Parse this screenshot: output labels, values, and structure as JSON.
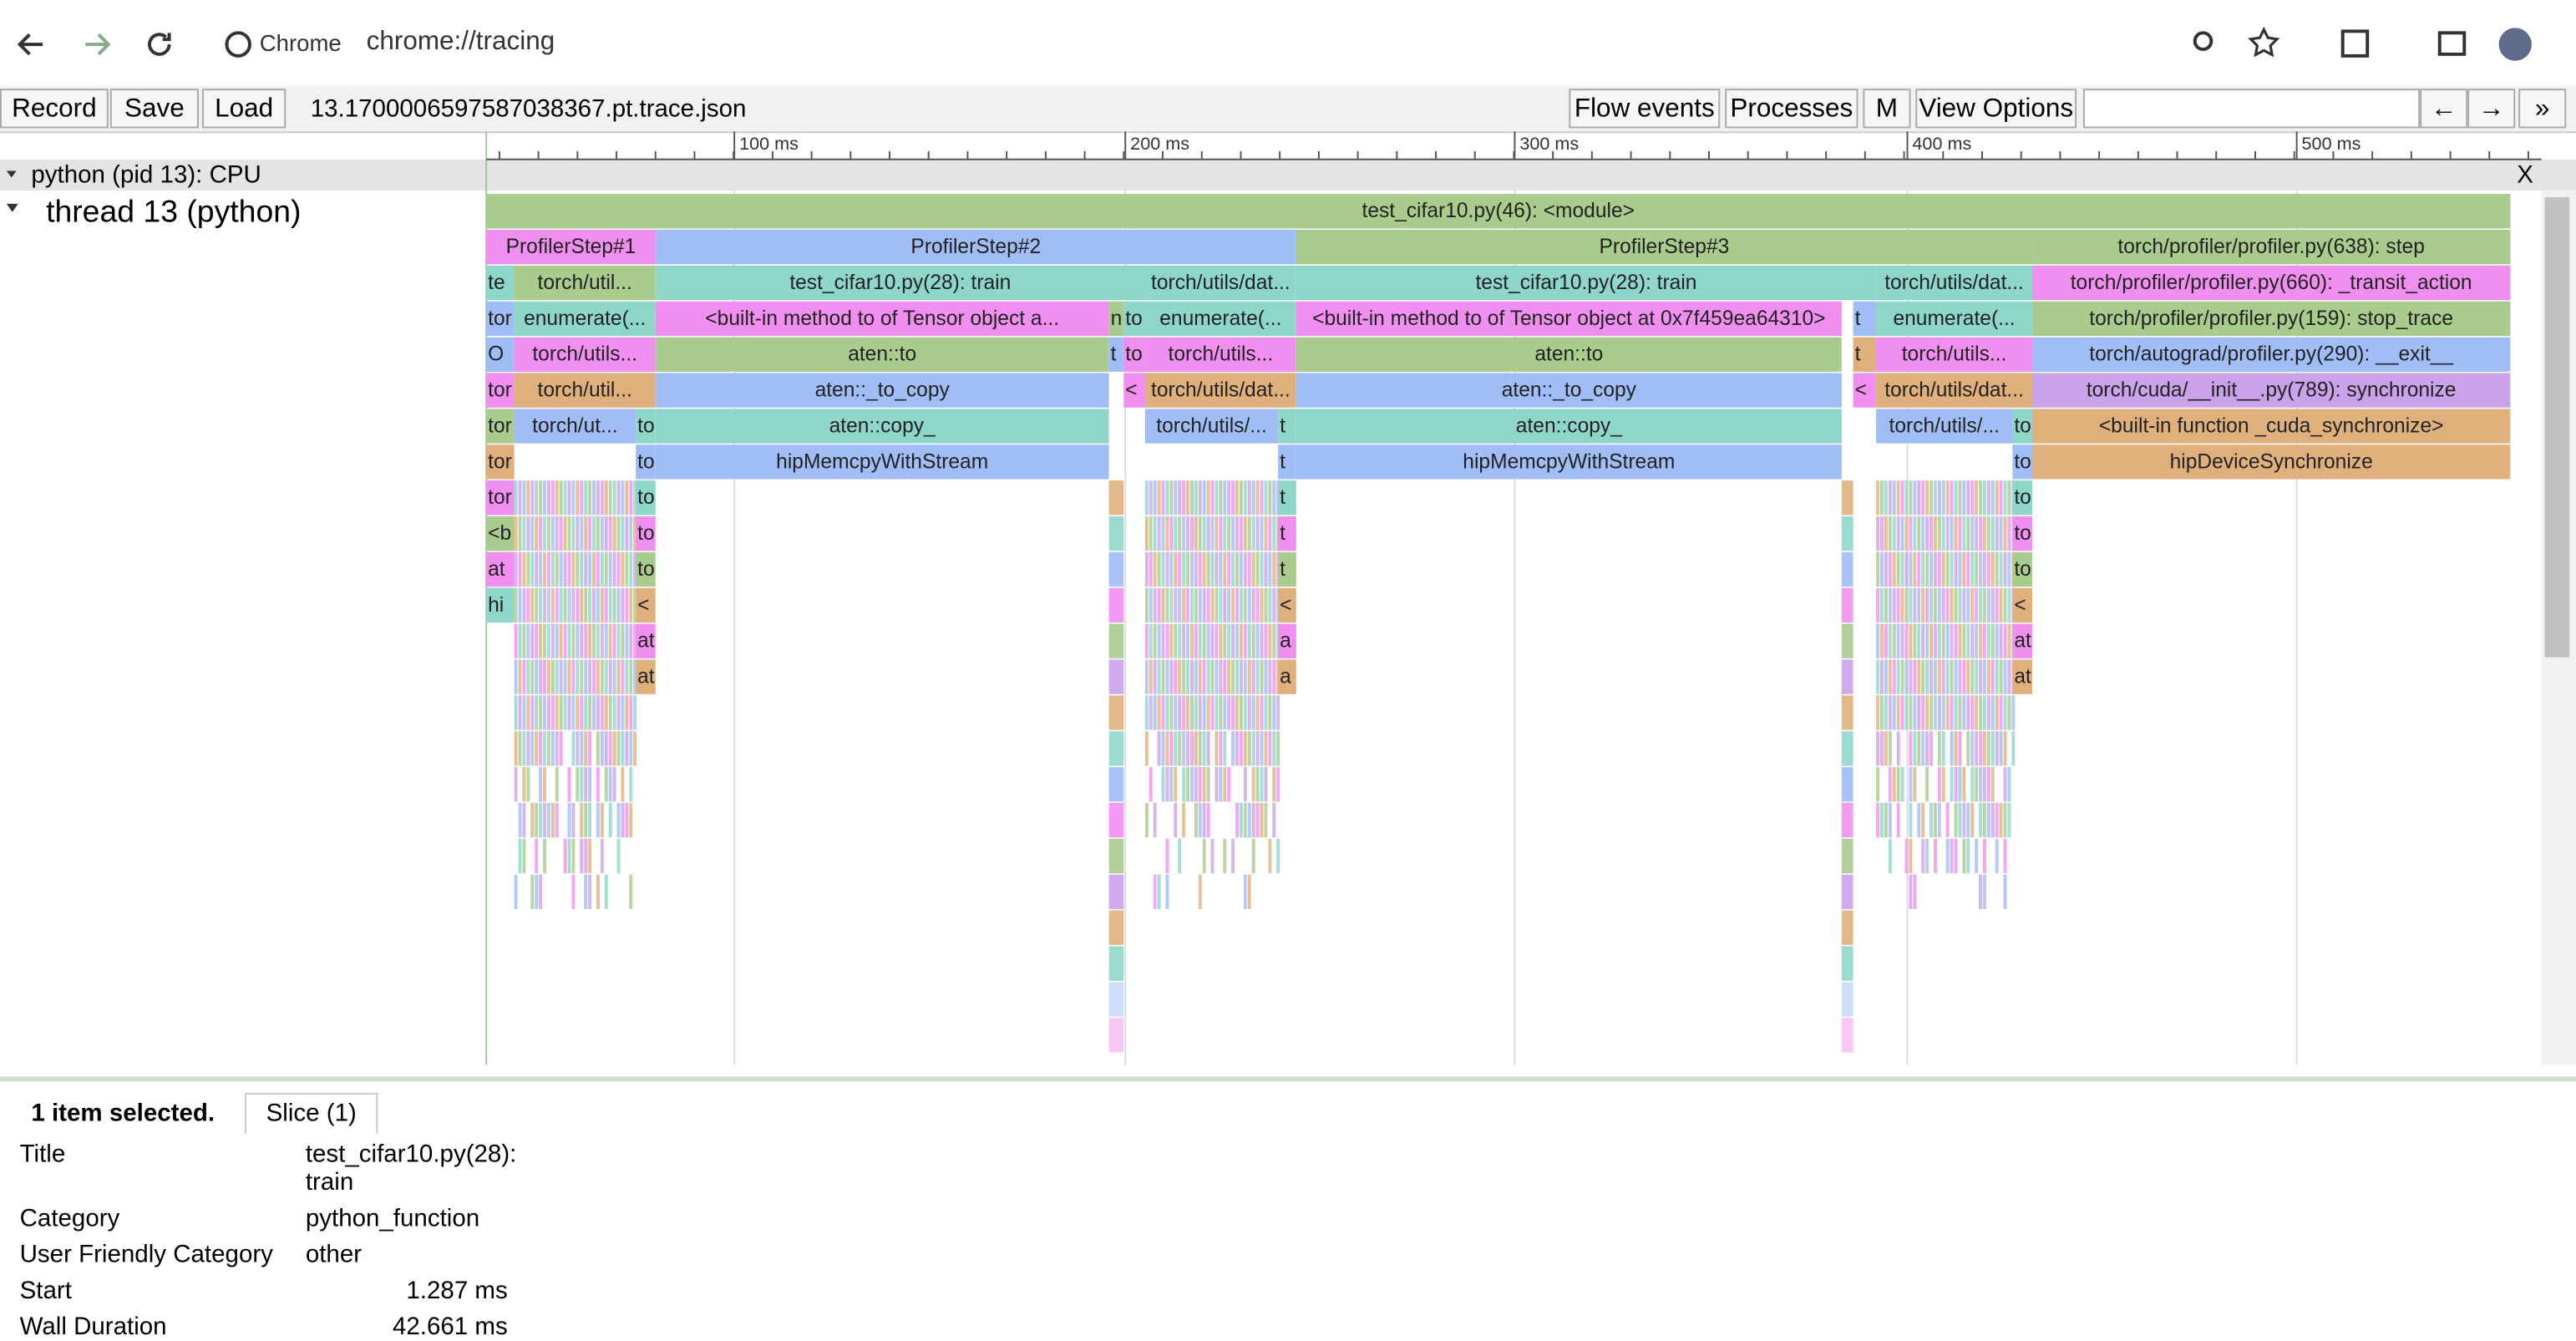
{
  "browser": {
    "brand": "Chrome",
    "url": "chrome://tracing"
  },
  "toolbar": {
    "buttons": [
      "Record",
      "Save",
      "Load"
    ],
    "file": "13.1700006597587038367.pt.trace.json",
    "right_buttons": [
      "Flow events",
      "Processes",
      "M",
      "View Options"
    ],
    "nav": [
      "←",
      "→",
      "»"
    ]
  },
  "ruler": {
    "labels": [
      "100 ms",
      "200 ms",
      "300 ms",
      "400 ms",
      "500 ms"
    ]
  },
  "process": {
    "title": "python (pid 13): CPU",
    "close": "X",
    "thread": "thread 13 (python)"
  },
  "flame": {
    "slices": [
      "test_cifar10.py(46): <module>",
      "ProfilerStep#1",
      "ProfilerStep#2",
      "ProfilerStep#3",
      "torch/profiler/profiler.py(638): step",
      "te",
      "torch/util...",
      "test_cifar10.py(28): train",
      "torch/utils/dat...",
      "test_cifar10.py(28): train",
      "torch/utils/dat...",
      "torch/profiler/profiler.py(660): _transit_action",
      "tor",
      "enumerate(...",
      "<built-in method to of Tensor object a...",
      "n",
      "to",
      "enumerate(...",
      "<built-in method to of Tensor object at 0x7f459ea64310>",
      "t",
      "enumerate(...",
      "torch/profiler/profiler.py(159): stop_trace",
      "O",
      "torch/utils...",
      "aten::to",
      "t",
      "to",
      "torch/utils...",
      "aten::to",
      "t",
      "torch/utils...",
      "torch/autograd/profiler.py(290): __exit__",
      "tor",
      "torch/util...",
      "aten::_to_copy",
      "<",
      "torch/utils/dat...",
      "aten::_to_copy",
      "<",
      "torch/utils/dat...",
      "torch/cuda/__init__.py(789): synchronize",
      "tor",
      "torch/ut...",
      "to",
      "aten::copy_",
      "torch/utils/...",
      "t",
      "aten::copy_",
      "torch/utils/...",
      "to",
      "<built-in function _cuda_synchronize>",
      "tor",
      "to",
      "hipMemcpyWithStream",
      "t",
      "hipMemcpyWithStream",
      "to",
      "hipDeviceSynchronize",
      "tor",
      "to",
      "t",
      "to",
      "<b",
      "to",
      "t",
      "to",
      "at",
      "to",
      "t",
      "to",
      "hi",
      "<",
      "<",
      "<",
      "at",
      "a",
      "at",
      "at",
      "a",
      "at"
    ]
  },
  "details": {
    "selected": "1 item selected.",
    "tab": "Slice (1)",
    "rows": [
      [
        "Title",
        "test_cifar10.py(28): train"
      ],
      [
        "Category",
        "python_function"
      ],
      [
        "User Friendly Category",
        "other"
      ],
      [
        "Start",
        "1.287 ms"
      ],
      [
        "Wall Duration",
        "42.661 ms"
      ]
    ]
  }
}
